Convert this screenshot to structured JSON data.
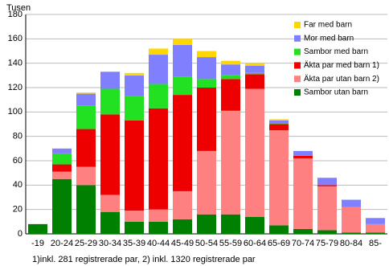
{
  "chart_data": {
    "type": "stacked-bar",
    "y_label": "Tusen",
    "footnote": "1)inkl. 281 registrerade par, 2) inkl. 1320 registrerade par",
    "categories": [
      "-19",
      "20-24",
      "25-29",
      "30-34",
      "35-39",
      "40-44",
      "45-49",
      "50-54",
      "55-59",
      "60-64",
      "65-69",
      "70-74",
      "75-79",
      "80-84",
      "85-"
    ],
    "series": [
      {
        "name": "Sambor utan barn",
        "color": "#008000",
        "values": [
          8,
          45,
          40,
          18,
          10,
          10,
          12,
          16,
          16,
          14,
          7,
          4,
          3,
          1,
          1
        ]
      },
      {
        "name": "Äkta par utan barn 2)",
        "color": "#ff8080",
        "values": [
          0,
          6,
          15,
          14,
          9,
          10,
          23,
          52,
          85,
          105,
          78,
          58,
          36,
          21,
          7
        ]
      },
      {
        "name": "Äkta par med barn 1)",
        "color": "#ee0000",
        "values": [
          0,
          6,
          31,
          66,
          74,
          83,
          79,
          52,
          26,
          12,
          5,
          2,
          1,
          0,
          0
        ]
      },
      {
        "name": "Sambor med barn",
        "color": "#22e022",
        "values": [
          0,
          9,
          19,
          21,
          20,
          20,
          15,
          7,
          3,
          1,
          1,
          0,
          0,
          0,
          0
        ]
      },
      {
        "name": "Mor med barn",
        "color": "#8080ff",
        "values": [
          0,
          4,
          10,
          14,
          17,
          24,
          26,
          18,
          9,
          6,
          2,
          4,
          6,
          6,
          5
        ]
      },
      {
        "name": "Far med barn",
        "color": "#ffd700",
        "values": [
          0,
          0,
          1,
          0,
          2,
          5,
          5,
          5,
          3,
          2,
          1,
          0,
          0,
          0,
          0
        ]
      }
    ],
    "ylim": [
      0,
      180
    ],
    "yticks": [
      0,
      20,
      40,
      60,
      80,
      100,
      120,
      140,
      160,
      180
    ],
    "grid": true,
    "legend": "top-right"
  }
}
